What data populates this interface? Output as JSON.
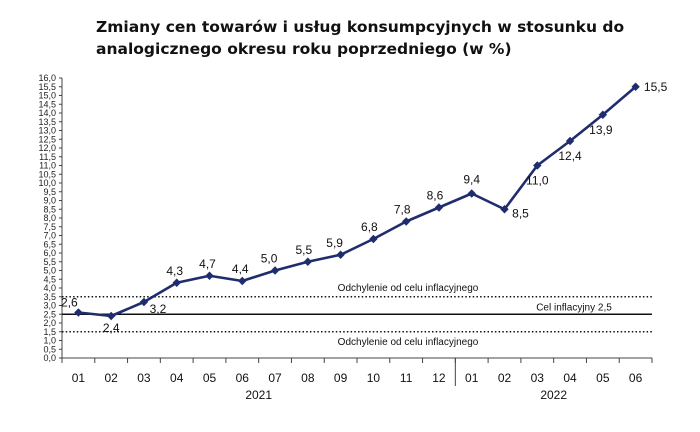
{
  "chart_data": {
    "type": "line",
    "title": "Zmiany cen towarów i usług konsumpcyjnych w stosunku do analogicznego okresu roku poprzedniego (w %)",
    "categories": [
      "01",
      "02",
      "03",
      "04",
      "05",
      "06",
      "07",
      "08",
      "09",
      "10",
      "11",
      "12",
      "01",
      "02",
      "03",
      "04",
      "05",
      "06"
    ],
    "years": [
      {
        "label": "2021",
        "from": 0,
        "to": 11
      },
      {
        "label": "2022",
        "from": 12,
        "to": 17
      }
    ],
    "series": [
      {
        "values": [
          2.6,
          2.4,
          3.2,
          4.3,
          4.7,
          4.4,
          5.0,
          5.5,
          5.9,
          6.8,
          7.8,
          8.6,
          9.4,
          8.5,
          11.0,
          12.4,
          13.9,
          15.5
        ],
        "labels": [
          "2,6",
          "2,4",
          "3,2",
          "4,3",
          "4,7",
          "4,4",
          "5,0",
          "5,5",
          "5,9",
          "6,8",
          "7,8",
          "8,6",
          "9,4",
          "8,5",
          "11,0",
          "12,4",
          "13,9",
          "15,5"
        ],
        "color": "#1f2d6e"
      }
    ],
    "ylim": [
      0,
      16
    ],
    "ytick_step": 0.5,
    "reference_lines": [
      {
        "value": 3.5,
        "label": "Odchylenie od celu inflacyjnego",
        "style": "dotted"
      },
      {
        "value": 2.5,
        "label": "Cel inflacyjny 2,5",
        "style": "solid"
      },
      {
        "value": 1.5,
        "label": "Odchylenie od celu inflacyjnego",
        "style": "dotted"
      }
    ],
    "grid": false,
    "legend": "none"
  }
}
